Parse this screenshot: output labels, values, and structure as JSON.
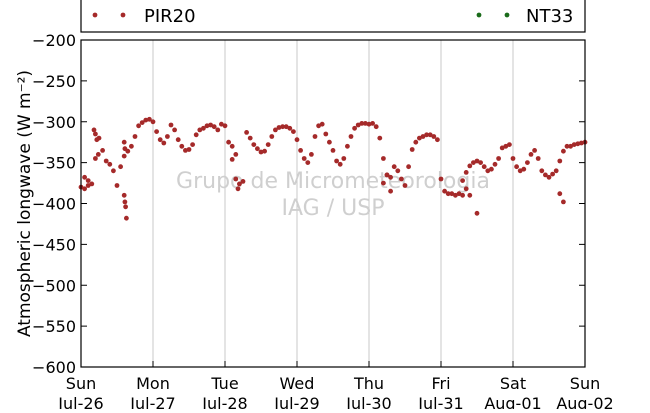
{
  "chart_data": {
    "type": "scatter",
    "title": "",
    "ylabel": "Atmospheric longwave (W m⁻²)",
    "xlabel": "",
    "ylim": [
      -600,
      -200
    ],
    "y_ticks": [
      -200,
      -250,
      -300,
      -350,
      -400,
      -450,
      -500,
      -550,
      -600
    ],
    "x_range_days": [
      0,
      7
    ],
    "x_ticks": [
      {
        "day": 0,
        "line1": "Sun",
        "line2": "Jul-26"
      },
      {
        "day": 1,
        "line1": "Mon",
        "line2": "Jul-27"
      },
      {
        "day": 2,
        "line1": "Tue",
        "line2": "Jul-28"
      },
      {
        "day": 3,
        "line1": "Wed",
        "line2": "Jul-29"
      },
      {
        "day": 4,
        "line1": "Thu",
        "line2": "Jul-30"
      },
      {
        "day": 5,
        "line1": "Fri",
        "line2": "Jul-31"
      },
      {
        "day": 6,
        "line1": "Sat",
        "line2": "Aug-01"
      },
      {
        "day": 7,
        "line1": "Sun",
        "line2": "Aug-02"
      }
    ],
    "grid": {
      "x": true,
      "y": false
    },
    "legend": [
      {
        "name": "PIR20",
        "color": "#a52a2a",
        "placement": "top-left"
      },
      {
        "name": "NT33",
        "color": "#1a6b1a",
        "placement": "top-right"
      }
    ],
    "watermark": [
      "Grupo de Micrometeorologia",
      "IAG / USP"
    ],
    "series": [
      {
        "name": "PIR20",
        "color": "#a52a2a",
        "x": [
          0.0,
          0.05,
          0.1,
          0.15,
          0.2,
          0.25,
          0.3,
          0.35,
          0.4,
          0.45,
          0.5,
          0.55,
          0.6,
          0.65,
          0.7,
          0.75,
          0.8,
          0.85,
          0.9,
          0.95,
          1.0,
          1.05,
          1.1,
          1.15,
          1.2,
          1.25,
          1.3,
          1.35,
          1.4,
          1.45,
          1.5,
          1.55,
          1.6,
          1.65,
          1.7,
          1.75,
          1.8,
          1.85,
          1.9,
          1.95,
          2.0,
          2.05,
          2.1,
          2.15,
          2.2,
          2.25,
          2.3,
          2.35,
          2.4,
          2.45,
          2.5,
          2.55,
          2.6,
          2.65,
          2.7,
          2.75,
          2.8,
          2.85,
          2.9,
          2.95,
          3.0,
          3.05,
          3.1,
          3.15,
          3.2,
          3.25,
          3.3,
          3.35,
          3.4,
          3.45,
          3.5,
          3.55,
          3.6,
          3.65,
          3.7,
          3.75,
          3.8,
          3.85,
          3.9,
          3.95,
          4.0,
          4.05,
          4.1,
          4.15,
          4.2,
          4.25,
          4.3,
          4.35,
          4.4,
          4.45,
          4.5,
          4.55,
          4.6,
          4.65,
          4.7,
          4.75,
          4.8,
          4.85,
          4.9,
          4.95,
          5.0,
          5.05,
          5.1,
          5.15,
          5.2,
          5.25,
          5.3,
          5.35,
          5.4,
          5.45,
          5.5,
          5.55,
          5.6,
          5.65,
          5.7,
          5.75,
          5.8,
          5.85,
          5.9,
          5.95,
          6.0,
          6.05,
          6.1,
          6.15,
          6.2,
          6.25,
          6.3,
          6.35,
          6.4,
          6.45,
          6.5,
          6.55,
          6.6,
          6.65,
          6.7,
          6.75,
          6.8,
          6.85,
          6.9,
          6.95,
          7.0,
          0.18,
          0.2,
          0.22,
          0.24,
          0.6,
          0.61,
          0.62,
          0.63,
          0.6,
          0.61,
          2.1,
          2.15,
          2.18,
          4.2,
          4.25,
          4.3,
          5.3,
          5.35,
          5.4,
          5.5,
          6.65,
          6.7,
          0.05,
          0.1
        ],
        "y": [
          -380,
          -382,
          -378,
          -376,
          -345,
          -320,
          -335,
          -348,
          -352,
          -360,
          -378,
          -355,
          -342,
          -336,
          -330,
          -318,
          -305,
          -301,
          -298,
          -297,
          -300,
          -312,
          -322,
          -326,
          -318,
          -304,
          -310,
          -322,
          -330,
          -335,
          -334,
          -328,
          -316,
          -310,
          -308,
          -305,
          -304,
          -306,
          -310,
          -303,
          -305,
          -325,
          -346,
          -370,
          -376,
          -373,
          -313,
          -320,
          -328,
          -333,
          -337,
          -336,
          -328,
          -318,
          -310,
          -307,
          -306,
          -306,
          -308,
          -312,
          -322,
          -335,
          -345,
          -350,
          -340,
          -318,
          -305,
          -303,
          -315,
          -325,
          -335,
          -348,
          -352,
          -345,
          -330,
          -318,
          -308,
          -304,
          -302,
          -302,
          -303,
          -302,
          -306,
          -320,
          -345,
          -365,
          -368,
          -355,
          -360,
          -370,
          -378,
          -355,
          -334,
          -325,
          -320,
          -318,
          -316,
          -316,
          -318,
          -322,
          -370,
          -385,
          -388,
          -388,
          -390,
          -388,
          -372,
          -362,
          -354,
          -350,
          -348,
          -350,
          -355,
          -360,
          -358,
          -352,
          -345,
          -332,
          -330,
          -328,
          -345,
          -355,
          -360,
          -358,
          -350,
          -340,
          -335,
          -345,
          -360,
          -365,
          -368,
          -364,
          -360,
          -348,
          -336,
          -330,
          -330,
          -328,
          -327,
          -326,
          -325,
          -310,
          -315,
          -322,
          -340,
          -390,
          -398,
          -404,
          -418,
          -325,
          -333,
          -330,
          -340,
          -382,
          -375,
          -365,
          -385,
          -390,
          -382,
          -390,
          -412,
          -388,
          -398,
          -368,
          -372
        ]
      },
      {
        "name": "NT33",
        "color": "#1a6b1a",
        "x": [],
        "y": []
      }
    ]
  }
}
